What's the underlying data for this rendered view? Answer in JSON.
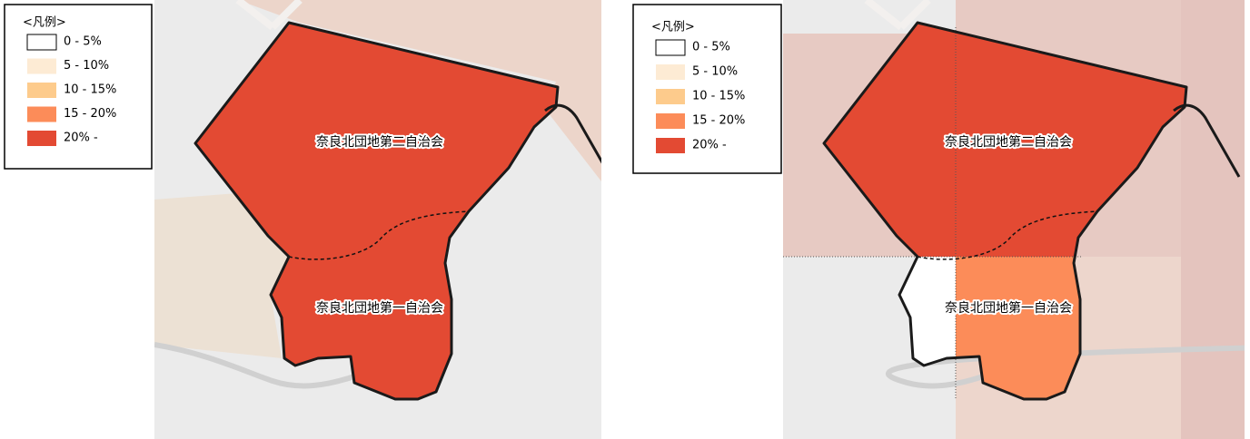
{
  "maps": [
    {
      "legend": {
        "title": "<凡例>",
        "items": [
          {
            "label": "0 - 5%",
            "color": "#ffffff"
          },
          {
            "label": "5 - 10%",
            "color": "#fdebd4"
          },
          {
            "label": "10 - 15%",
            "color": "#fdcb8c"
          },
          {
            "label": "15 - 20%",
            "color": "#fc8c59"
          },
          {
            "label": "20% -",
            "color": "#e34a33"
          }
        ]
      },
      "regions": [
        {
          "label": "奈良北団地第二自治会"
        },
        {
          "label": "奈良北団地第一自治会"
        }
      ]
    },
    {
      "legend": {
        "title": "<凡例>",
        "items": [
          {
            "label": "0 - 5%",
            "color": "#ffffff"
          },
          {
            "label": "5 - 10%",
            "color": "#fdebd4"
          },
          {
            "label": "10 - 15%",
            "color": "#fdcb8c"
          },
          {
            "label": "15 - 20%",
            "color": "#fc8c59"
          },
          {
            "label": "20% -",
            "color": "#e34a33"
          }
        ]
      },
      "regions": [
        {
          "label": "奈良北団地第二自治会"
        },
        {
          "label": "奈良北団地第一自治会"
        }
      ]
    }
  ]
}
